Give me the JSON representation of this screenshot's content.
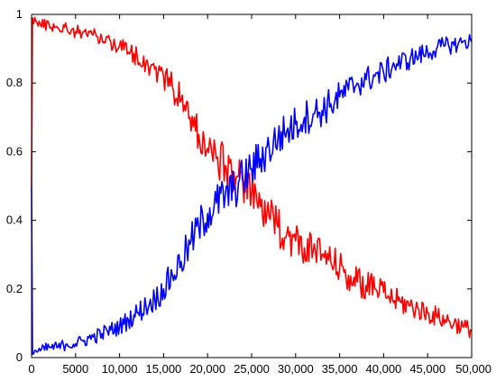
{
  "chart_data": {
    "type": "line",
    "title": "",
    "xlabel": "",
    "ylabel": "",
    "xlim": [
      0,
      50000
    ],
    "ylim": [
      0,
      1
    ],
    "xticks": [
      {
        "value": 0,
        "label": "0"
      },
      {
        "value": 5000,
        "label": "5000"
      },
      {
        "value": 10000,
        "label": "10,000"
      },
      {
        "value": 15000,
        "label": "15,000"
      },
      {
        "value": 20000,
        "label": "20,000"
      },
      {
        "value": 25000,
        "label": "25,000"
      },
      {
        "value": 30000,
        "label": "30,000"
      },
      {
        "value": 35000,
        "label": "35,000"
      },
      {
        "value": 40000,
        "label": "40,000"
      },
      {
        "value": 45000,
        "label": "45,000"
      },
      {
        "value": 50000,
        "label": "50,000"
      }
    ],
    "yticks": [
      {
        "value": 0,
        "label": "0"
      },
      {
        "value": 0.2,
        "label": "0.2"
      },
      {
        "value": 0.4,
        "label": "0.4"
      },
      {
        "value": 0.6,
        "label": "0.6"
      },
      {
        "value": 0.8,
        "label": "0.8"
      },
      {
        "value": 1,
        "label": "1"
      }
    ],
    "grid": false,
    "legend": "none",
    "series": [
      {
        "color": "#ff0000",
        "x": [
          0,
          100,
          500,
          1000,
          2000,
          3000,
          4000,
          5000,
          6000,
          7000,
          8000,
          9000,
          10000,
          11000,
          12000,
          13000,
          14000,
          15000,
          16000,
          17000,
          18000,
          19000,
          20000,
          21000,
          22000,
          23000,
          24000,
          25000,
          26000,
          27000,
          28000,
          29000,
          30000,
          31000,
          32000,
          33000,
          34000,
          35000,
          36000,
          37000,
          38000,
          39000,
          40000,
          41000,
          42000,
          43000,
          44000,
          45000,
          46000,
          47000,
          48000,
          49000,
          50000
        ],
        "y": [
          0.5,
          0.99,
          0.98,
          0.97,
          0.97,
          0.96,
          0.96,
          0.95,
          0.95,
          0.94,
          0.93,
          0.92,
          0.91,
          0.89,
          0.88,
          0.86,
          0.84,
          0.82,
          0.79,
          0.75,
          0.7,
          0.65,
          0.61,
          0.58,
          0.56,
          0.54,
          0.51,
          0.48,
          0.44,
          0.41,
          0.38,
          0.36,
          0.34,
          0.32,
          0.31,
          0.3,
          0.28,
          0.26,
          0.24,
          0.22,
          0.21,
          0.2,
          0.19,
          0.17,
          0.16,
          0.15,
          0.14,
          0.13,
          0.12,
          0.11,
          0.1,
          0.09,
          0.08
        ]
      },
      {
        "color": "#0000ff",
        "x": [
          0,
          100,
          500,
          1000,
          2000,
          3000,
          4000,
          5000,
          6000,
          7000,
          8000,
          9000,
          10000,
          11000,
          12000,
          13000,
          14000,
          15000,
          16000,
          17000,
          18000,
          19000,
          20000,
          21000,
          22000,
          23000,
          24000,
          25000,
          26000,
          27000,
          28000,
          29000,
          30000,
          31000,
          32000,
          33000,
          34000,
          35000,
          36000,
          37000,
          38000,
          39000,
          40000,
          41000,
          42000,
          43000,
          44000,
          45000,
          46000,
          47000,
          48000,
          49000,
          50000
        ],
        "y": [
          0.5,
          0.01,
          0.02,
          0.02,
          0.03,
          0.03,
          0.04,
          0.04,
          0.05,
          0.06,
          0.07,
          0.08,
          0.09,
          0.11,
          0.13,
          0.15,
          0.17,
          0.2,
          0.24,
          0.28,
          0.33,
          0.38,
          0.42,
          0.45,
          0.47,
          0.49,
          0.52,
          0.55,
          0.58,
          0.61,
          0.64,
          0.66,
          0.68,
          0.7,
          0.71,
          0.72,
          0.74,
          0.76,
          0.78,
          0.8,
          0.81,
          0.82,
          0.83,
          0.85,
          0.86,
          0.87,
          0.88,
          0.89,
          0.9,
          0.91,
          0.91,
          0.92,
          0.92
        ]
      }
    ]
  }
}
